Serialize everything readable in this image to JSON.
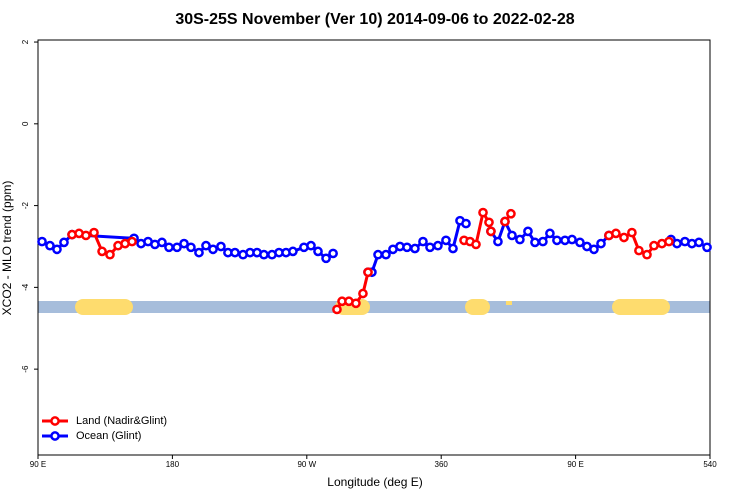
{
  "chart_data": {
    "type": "line",
    "title": "30S-25S November (Ver 10)   2014-09-06 to 2022-02-28",
    "x_label": "Longitude (deg E)",
    "y_label": "XCO2 - MLO trend (ppm)",
    "xlim": [
      90,
      540
    ],
    "ylim": [
      -8.1,
      2.05
    ],
    "xticks": [
      {
        "value": 90,
        "label": "90 E"
      },
      180,
      {
        "value": 270,
        "label": "90 W"
      },
      360,
      {
        "value": 450,
        "label": "90 E"
      },
      540
    ],
    "yticks": [
      2,
      0,
      -2,
      -4,
      -6
    ],
    "legend": "bottom-left",
    "series": [
      {
        "name": "Ocean (Glint)",
        "color": "#0000ff",
        "x": [
          92.7,
          98.0,
          102.7,
          107.4,
          112.8,
          154.3,
          159.0,
          163.7,
          168.3,
          173.0,
          177.7,
          183.1,
          187.8,
          192.4,
          197.8,
          202.5,
          207.2,
          212.5,
          217.2,
          221.9,
          227.3,
          232.0,
          236.7,
          241.3,
          246.7,
          251.4,
          256.1,
          260.7,
          268.1,
          272.8,
          277.5,
          282.9,
          287.6,
          null,
          311.0,
          313.6,
          317.7,
          323.0,
          327.7,
          332.4,
          337.1,
          342.4,
          347.8,
          352.5,
          357.8,
          363.2,
          367.9,
          372.6,
          376.6,
          null,
          393.3,
          398.0,
          402.7,
          407.4,
          412.7,
          418.1,
          422.8,
          428.1,
          432.8,
          437.5,
          442.9,
          447.6,
          452.9,
          457.6,
          462.3,
          467.0,
          472.3,
          null,
          513.9,
          517.9,
          523.2,
          527.9,
          532.6,
          538.0
        ],
        "values": [
          -2.88,
          -2.98,
          -3.07,
          -2.9,
          -2.71,
          -2.8,
          -2.93,
          -2.88,
          -2.95,
          -2.9,
          -3.02,
          -3.02,
          -2.93,
          -3.02,
          -3.15,
          -2.98,
          -3.07,
          -3.0,
          -3.15,
          -3.15,
          -3.2,
          -3.15,
          -3.15,
          -3.2,
          -3.2,
          -3.15,
          -3.15,
          -3.12,
          -3.02,
          -2.98,
          -3.12,
          -3.29,
          -3.17,
          null,
          -3.63,
          -3.63,
          -3.2,
          -3.2,
          -3.07,
          -3.0,
          -3.02,
          -3.05,
          -2.88,
          -3.02,
          -2.98,
          -2.85,
          -3.05,
          -2.37,
          -2.44,
          null,
          -2.63,
          -2.88,
          -2.39,
          -2.73,
          -2.83,
          -2.63,
          -2.9,
          -2.88,
          -2.68,
          -2.85,
          -2.85,
          -2.83,
          -2.9,
          -3.0,
          -3.07,
          -2.93,
          -2.73,
          null,
          -2.83,
          -2.93,
          -2.88,
          -2.93,
          -2.9,
          -3.02
        ]
      },
      {
        "name": "Land (Nadir&Glint)",
        "color": "#ff0000",
        "x": [
          112.8,
          117.5,
          122.1,
          127.5,
          132.9,
          138.2,
          143.6,
          148.3,
          153.0,
          null,
          290.2,
          293.6,
          298.2,
          302.9,
          307.6,
          311.0,
          null,
          375.3,
          379.3,
          383.3,
          388.0,
          392.0,
          393.3,
          null,
          402.7,
          406.7,
          null,
          472.3,
          477.0,
          482.4,
          487.7,
          492.4,
          497.8,
          502.5,
          507.8,
          512.5
        ],
        "values": [
          -2.71,
          -2.68,
          -2.73,
          -2.66,
          -3.12,
          -3.2,
          -2.98,
          -2.93,
          -2.88,
          null,
          -4.54,
          -4.34,
          -4.34,
          -4.39,
          -4.15,
          -3.63,
          null,
          -2.85,
          -2.88,
          -2.95,
          -2.17,
          -2.41,
          -2.63,
          null,
          -2.39,
          -2.2,
          null,
          -2.73,
          -2.68,
          -2.78,
          -2.66,
          -3.1,
          -3.2,
          -2.98,
          -2.93,
          -2.88
        ]
      }
    ]
  }
}
